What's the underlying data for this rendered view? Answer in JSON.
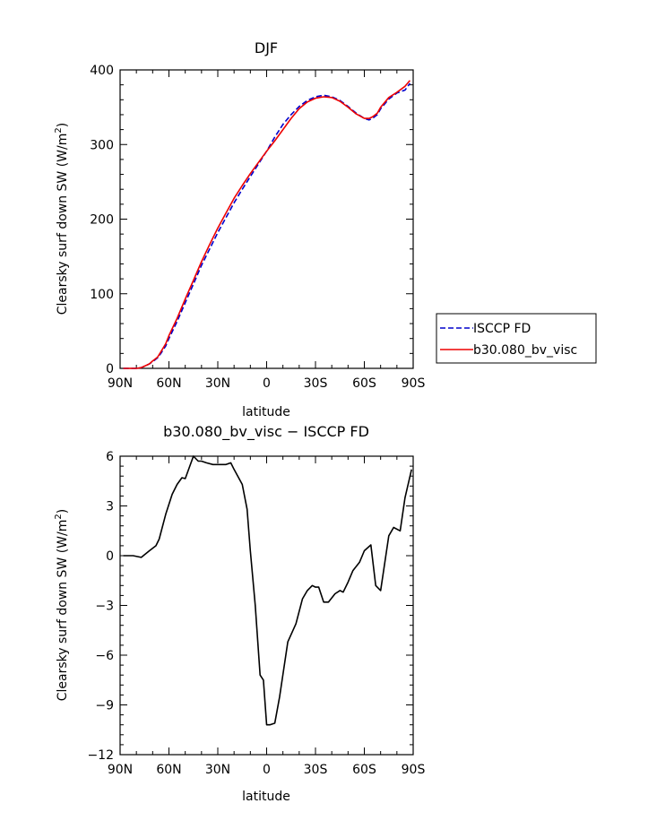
{
  "chart_data": [
    {
      "type": "line",
      "title": "DJF",
      "xlabel": "latitude",
      "ylabel_main": "Clearsky surf down SW (W/m",
      "ylabel_sup": "2",
      "ylabel_close": ")",
      "x_ticks": [
        "90N",
        "60N",
        "30N",
        "0",
        "30S",
        "60S",
        "90S"
      ],
      "y_ticks": [
        "0",
        "100",
        "200",
        "300",
        "400"
      ],
      "ylim": [
        0,
        400
      ],
      "xlim": [
        90,
        -90
      ],
      "legend_position": "right",
      "series": [
        {
          "name": "ISCCP FD",
          "color": "#0000cc",
          "style": "dashed",
          "x": [
            88,
            85,
            80,
            77,
            75,
            72,
            70,
            67,
            65,
            62,
            60,
            55,
            50,
            45,
            40,
            35,
            30,
            25,
            20,
            15,
            10,
            5,
            0,
            -5,
            -10,
            -15,
            -20,
            -25,
            -30,
            -35,
            -40,
            -45,
            -50,
            -55,
            -60,
            -63,
            -65,
            -68,
            -70,
            -75,
            -80,
            -85,
            -88
          ],
          "y": [
            0,
            0,
            0,
            1,
            3,
            6,
            9,
            14,
            20,
            30,
            40,
            63,
            88,
            113,
            138,
            160,
            182,
            202,
            222,
            240,
            257,
            274,
            291,
            310,
            327,
            340,
            351,
            359,
            364,
            366,
            364,
            359,
            351,
            342,
            335,
            333,
            335,
            340,
            348,
            361,
            369,
            373,
            382
          ]
        },
        {
          "name": "b30.080_bv_visc",
          "color": "#ee0000",
          "style": "solid",
          "x": [
            88,
            85,
            80,
            77,
            75,
            72,
            70,
            67,
            65,
            62,
            60,
            55,
            50,
            45,
            40,
            35,
            30,
            25,
            20,
            15,
            10,
            5,
            0,
            -5,
            -10,
            -15,
            -20,
            -25,
            -30,
            -35,
            -40,
            -45,
            -50,
            -55,
            -60,
            -63,
            -65,
            -68,
            -70,
            -75,
            -80,
            -85,
            -88
          ],
          "y": [
            0,
            0,
            0,
            1,
            3,
            6,
            10,
            15,
            22,
            33,
            44,
            67,
            93,
            118,
            143,
            166,
            188,
            208,
            228,
            245,
            261,
            276,
            291,
            305,
            320,
            335,
            348,
            357,
            362,
            364,
            363,
            358,
            350,
            341,
            335,
            335,
            337,
            342,
            350,
            363,
            370,
            378,
            386
          ]
        }
      ]
    },
    {
      "type": "line",
      "title": "b30.080_bv_visc − ISCCP FD",
      "xlabel": "latitude",
      "ylabel_main": "Clearsky surf down SW (W/m",
      "ylabel_sup": "2",
      "ylabel_close": ")",
      "x_ticks": [
        "90N",
        "60N",
        "30N",
        "0",
        "30S",
        "60S",
        "90S"
      ],
      "y_ticks": [
        "6",
        "3",
        "0",
        "−3",
        "−6",
        "−9",
        "−12"
      ],
      "ylim": [
        -12,
        6
      ],
      "xlim": [
        90,
        -90
      ],
      "series": [
        {
          "color": "#000000",
          "style": "solid",
          "x": [
            88,
            82,
            77,
            72,
            68,
            66,
            62,
            58,
            55,
            52,
            50,
            45,
            42,
            40,
            37,
            33,
            30,
            25,
            22,
            20,
            15,
            12,
            10,
            7,
            4,
            2,
            0,
            -2,
            -5,
            -8,
            -13,
            -18,
            -22,
            -25,
            -28,
            -30,
            -32,
            -35,
            -38,
            -42,
            -45,
            -47,
            -50,
            -53,
            -57,
            -60,
            -64,
            -67,
            -70,
            -75,
            -78,
            -82,
            -85,
            -89
          ],
          "y": [
            0,
            0,
            -0.1,
            0.3,
            0.6,
            1.0,
            2.5,
            3.7,
            4.3,
            4.7,
            4.65,
            6.0,
            5.7,
            5.7,
            5.6,
            5.5,
            5.5,
            5.5,
            5.6,
            5.2,
            4.3,
            2.8,
            0.3,
            -3.0,
            -7.2,
            -7.5,
            -10.2,
            -10.2,
            -10.1,
            -8.5,
            -5.2,
            -4.1,
            -2.6,
            -2.1,
            -1.8,
            -1.9,
            -1.9,
            -2.8,
            -2.8,
            -2.3,
            -2.1,
            -2.2,
            -1.6,
            -0.9,
            -0.4,
            0.3,
            0.65,
            -1.8,
            -2.1,
            1.2,
            1.7,
            1.5,
            3.5,
            5.2
          ]
        }
      ]
    }
  ]
}
